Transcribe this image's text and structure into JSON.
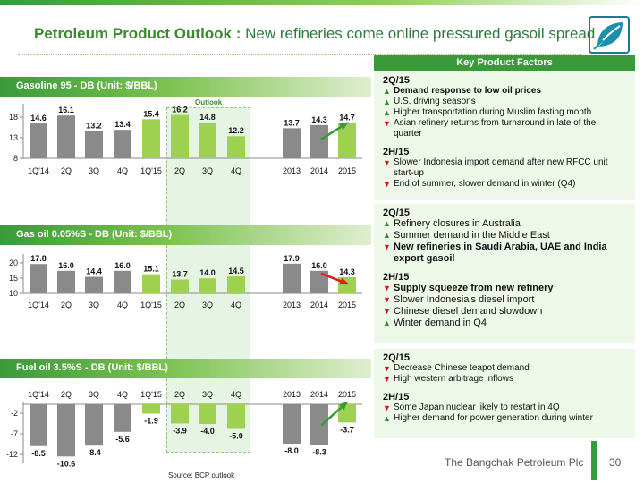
{
  "colors": {
    "green_dark": "#3a9a3a",
    "green_light": "#9ccc55",
    "bar_actual": "#8a8a8a",
    "bar_outlook": "#9ed14f",
    "arrow_red": "#e31b1b",
    "arrow_green": "#3a9a3a"
  },
  "header": {
    "title_main": "Petroleum Product Outlook : ",
    "title_sub": "New refineries come online pressured gasoil spread",
    "logo_icon": "leaf-logo-icon"
  },
  "outlook_label": "Outlook",
  "factors_title": "Key Product Factors",
  "sections": [
    {
      "label": "Gasoline 95 - DB (Unit: $/BBL)",
      "factors": [
        {
          "heading": "2Q/15",
          "items": [
            {
              "dir": "up",
              "text": "Demand response to low oil prices",
              "bold": true
            },
            {
              "dir": "up",
              "text": "U.S. driving seasons",
              "bold": false
            },
            {
              "dir": "up",
              "text": "Higher transportation during Muslim fasting month",
              "bold": false
            },
            {
              "dir": "down",
              "text": "Asian refinery returns from turnaround in late of the quarter",
              "bold": false
            }
          ]
        },
        {
          "heading": "2H/15",
          "items": [
            {
              "dir": "down",
              "text": "Slower Indonesia import demand after new RFCC unit start-up",
              "bold": false
            },
            {
              "dir": "down",
              "text": "End of summer, slower demand in winter (Q4)",
              "bold": false
            }
          ]
        }
      ]
    },
    {
      "label": "Gas oil 0.05%S - DB (Unit: $/BBL)",
      "factors": [
        {
          "heading": "2Q/15",
          "items": [
            {
              "dir": "up",
              "text": "Refinery closures in Australia",
              "bold": false
            },
            {
              "dir": "up",
              "text": "Summer demand in the Middle East",
              "bold": false
            },
            {
              "dir": "down",
              "text": "New refineries in Saudi Arabia, UAE and India export gasoil",
              "bold": true
            }
          ]
        },
        {
          "heading": "2H/15",
          "items": [
            {
              "dir": "down",
              "text": "Supply squeeze from new refinery",
              "bold": true
            },
            {
              "dir": "down",
              "text": "Slower Indonesia's diesel import",
              "bold": false
            },
            {
              "dir": "down",
              "text": "Chinese diesel demand slowdown",
              "bold": false
            },
            {
              "dir": "up",
              "text": "Winter demand in Q4",
              "bold": false
            }
          ]
        }
      ]
    },
    {
      "label": "Fuel oil 3.5%S - DB (Unit: $/BBL)",
      "factors": [
        {
          "heading": "2Q/15",
          "items": [
            {
              "dir": "down",
              "text": "Decrease Chinese teapot demand",
              "bold": false
            },
            {
              "dir": "down",
              "text": "High western arbitrage inflows",
              "bold": false
            }
          ]
        },
        {
          "heading": "2H/15",
          "items": [
            {
              "dir": "down",
              "text": "Some Japan nuclear likely to restart in 4Q",
              "bold": false
            },
            {
              "dir": "up",
              "text": "Higher demand for power generation during winter",
              "bold": false
            }
          ]
        }
      ]
    }
  ],
  "chart_data": [
    {
      "type": "bar",
      "title": "Gasoline 95 - DB (Unit: $/BBL)",
      "categories": [
        "1Q'14",
        "2Q",
        "3Q",
        "4Q",
        "1Q'15",
        "2Q",
        "3Q",
        "4Q",
        "2013",
        "2014",
        "2015"
      ],
      "values": [
        14.6,
        16.1,
        13.2,
        13.4,
        15.4,
        16.2,
        14.8,
        12.2,
        13.7,
        14.3,
        14.7
      ],
      "value_labels": [
        "14.6",
        "16.1",
        "13.2",
        "13.4",
        "15.4",
        "16.2",
        "14.8",
        "12.2",
        "13.7",
        "14.3",
        "14.7"
      ],
      "highlight": [
        false,
        false,
        false,
        false,
        true,
        true,
        true,
        true,
        false,
        false,
        true
      ],
      "yticks": [
        "18",
        "13",
        "8"
      ],
      "ylim": [
        8,
        18
      ],
      "trend_arrow": "up"
    },
    {
      "type": "bar",
      "title": "Gas oil 0.05%S - DB (Unit: $/BBL)",
      "categories": [
        "1Q'14",
        "2Q",
        "3Q",
        "4Q",
        "1Q'15",
        "2Q",
        "3Q",
        "4Q",
        "2013",
        "2014",
        "2015"
      ],
      "values": [
        17.8,
        16.0,
        14.4,
        16.0,
        15.1,
        13.7,
        14.0,
        14.5,
        17.9,
        16.0,
        14.3
      ],
      "value_labels": [
        "17.8",
        "16.0",
        "14.4",
        "16.0",
        "15.1",
        "13.7",
        "14.0",
        "14.5",
        "17.9",
        "16.0",
        "14.3"
      ],
      "highlight": [
        false,
        false,
        false,
        false,
        true,
        true,
        true,
        true,
        false,
        false,
        true
      ],
      "yticks": [
        "20",
        "15",
        "10"
      ],
      "ylim": [
        10,
        20
      ],
      "trend_arrow": "down"
    },
    {
      "type": "bar",
      "title": "Fuel oil 3.5%S - DB (Unit: $/BBL)",
      "categories": [
        "1Q'14",
        "2Q",
        "3Q",
        "4Q",
        "1Q'15",
        "2Q",
        "3Q",
        "4Q",
        "2013",
        "2014",
        "2015"
      ],
      "values": [
        -8.5,
        -10.6,
        -8.4,
        -5.6,
        -1.9,
        -3.9,
        -4.0,
        -5.0,
        -8.0,
        -8.3,
        -3.7
      ],
      "value_labels": [
        "-8.5",
        "-10.6",
        "-8.4",
        "-5.6",
        "-1.9",
        "-3.9",
        "-4.0",
        "-5.0",
        "-8.0",
        "-8.3",
        "-3.7"
      ],
      "highlight": [
        false,
        false,
        false,
        false,
        true,
        true,
        true,
        true,
        false,
        false,
        true
      ],
      "yticks": [
        "-2",
        "-7",
        "-12"
      ],
      "ylim": [
        -12,
        0
      ],
      "trend_arrow": "up"
    }
  ],
  "source": "Source: BCP outlook",
  "footer": {
    "company": "The Bangchak Petroleum Plc",
    "page": "30"
  }
}
